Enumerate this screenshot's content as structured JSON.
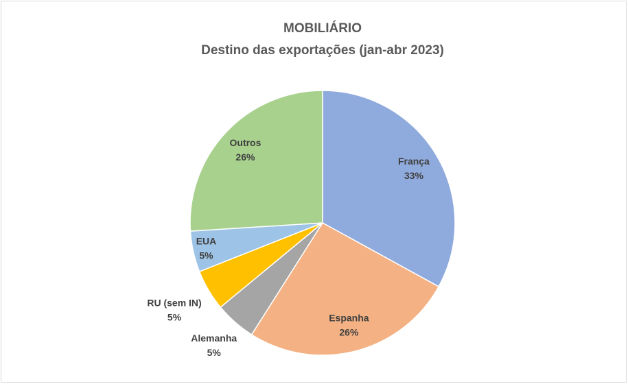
{
  "chart_data": {
    "type": "pie",
    "title": "MOBILIÁRIO",
    "subtitle": "Destino das exportações (jan-abr 2023)",
    "categories": [
      "França",
      "Espanha",
      "Alemanha",
      "RU (sem IN)",
      "EUA",
      "Outros"
    ],
    "values": [
      33,
      26,
      5,
      5,
      5,
      26
    ],
    "value_labels": [
      "33%",
      "26%",
      "5%",
      "5%",
      "5%",
      "26%"
    ],
    "colors": [
      "#8faadc",
      "#f4b183",
      "#a5a5a5",
      "#ffc000",
      "#9dc3e6",
      "#a9d18e"
    ]
  }
}
